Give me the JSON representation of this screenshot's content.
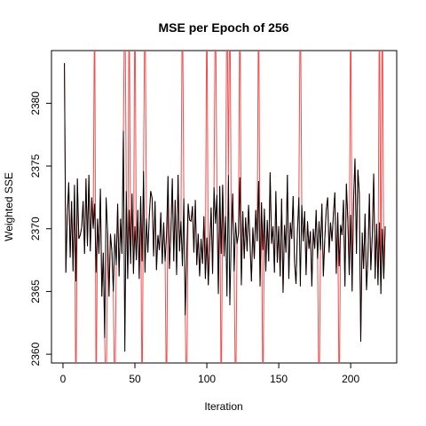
{
  "chart_data": {
    "type": "line",
    "title": "MSE per Epoch of 256",
    "xlabel": "Iteration",
    "ylabel": "Weighted SSE",
    "xlim": [
      -8,
      232
    ],
    "ylim": [
      2359.3,
      2384.2
    ],
    "xticks": [
      0,
      50,
      100,
      150,
      200
    ],
    "yticks": [
      2360,
      2365,
      2370,
      2375,
      2380
    ],
    "x": [
      1,
      2,
      3,
      4,
      5,
      6,
      7,
      8,
      9,
      10,
      11,
      12,
      13,
      14,
      15,
      16,
      17,
      18,
      19,
      20,
      21,
      22,
      23,
      24,
      25,
      26,
      27,
      28,
      29,
      30,
      31,
      32,
      33,
      34,
      35,
      36,
      37,
      38,
      39,
      40,
      41,
      42,
      43,
      44,
      45,
      46,
      47,
      48,
      49,
      50,
      51,
      52,
      53,
      54,
      55,
      56,
      57,
      58,
      59,
      60,
      61,
      62,
      63,
      64,
      65,
      66,
      67,
      68,
      69,
      70,
      71,
      72,
      73,
      74,
      75,
      76,
      77,
      78,
      79,
      80,
      81,
      82,
      83,
      84,
      85,
      86,
      87,
      88,
      89,
      90,
      91,
      92,
      93,
      94,
      95,
      96,
      97,
      98,
      99,
      100,
      101,
      102,
      103,
      104,
      105,
      106,
      107,
      108,
      109,
      110,
      111,
      112,
      113,
      114,
      115,
      116,
      117,
      118,
      119,
      120,
      121,
      122,
      123,
      124,
      125,
      126,
      127,
      128,
      129,
      130,
      131,
      132,
      133,
      134,
      135,
      136,
      137,
      138,
      139,
      140,
      141,
      142,
      143,
      144,
      145,
      146,
      147,
      148,
      149,
      150,
      151,
      152,
      153,
      154,
      155,
      156,
      157,
      158,
      159,
      160,
      161,
      162,
      163,
      164,
      165,
      166,
      167,
      168,
      169,
      170,
      171,
      172,
      173,
      174,
      175,
      176,
      177,
      178,
      179,
      180,
      181,
      182,
      183,
      184,
      185,
      186,
      187,
      188,
      189,
      190,
      191,
      192,
      193,
      194,
      195,
      196,
      197,
      198,
      199,
      200,
      201,
      202,
      203,
      204,
      205,
      206,
      207,
      208,
      209,
      210,
      211,
      212,
      213,
      214,
      215,
      216,
      217,
      218,
      219,
      220,
      221,
      222,
      223,
      224
    ],
    "series": [
      {
        "color": "#f24d4d",
        "values": [
          2383.2,
          2366.5,
          2371.0,
          2373.7,
          2367.7,
          2372.2,
          2366.6,
          2373.5,
          2355,
          2374.0,
          2369.2,
          2369.5,
          2370.1,
          2372.2,
          2368.0,
          2374.0,
          2368.6,
          2374.3,
          2368.2,
          2372.5,
          2370.0,
          2390,
          2355,
          2370.8,
          2368.0,
          2373.2,
          2364.6,
          2368.1,
          2361.3,
          2355,
          2369.8,
          2364.6,
          2369.6,
          2368.2,
          2365.0,
          2355,
          2367.1,
          2372.0,
          2366.2,
          2370.8,
          2368.0,
          2377.8,
          2390,
          2373.0,
          2366.0,
          2390,
          2367.2,
          2372.8,
          2366.4,
          2390,
          2367.5,
          2371.5,
          2366.0,
          2372.6,
          2355,
          2374.6,
          2390,
          2370.8,
          2368.1,
          2371.0,
          2373.0,
          2372.4,
          2367.8,
          2372.2,
          2366.7,
          2369.5,
          2368.3,
          2371.3,
          2367.2,
          2370.5,
          2367.4,
          2355,
          2374.2,
          2366.8,
          2369.7,
          2374.0,
          2367.4,
          2372.3,
          2366.3,
          2374.3,
          2368.2,
          2370.6,
          2390,
          2372.4,
          2363.1,
          2355,
          2372.0,
          2370.7,
          2370.6,
          2371.8,
          2368.1,
          2372.3,
          2367.1,
          2369.6,
          2366.2,
          2369.2,
          2367.2,
          2371.0,
          2366.0,
          2390,
          2365.5,
          2368.6,
          2371.7,
          2366.4,
          2373.3,
          2390,
          2372.7,
          2364.8,
          2373.4,
          2355,
          2373.5,
          2367.8,
          2371.0,
          2390,
          2374.3,
          2390,
          2369.5,
          2372.8,
          2366.6,
          2355,
          2368.8,
          2369.6,
          2390,
          2365.5,
          2371.4,
          2367.6,
          2370.9,
          2368.2,
          2371.9,
          2369.0,
          2365.8,
          2370.1,
          2367.6,
          2371.5,
          2369.0,
          2390,
          2365.4,
          2372.1,
          2355,
          2371.6,
          2366.6,
          2370.7,
          2367.4,
          2374.5,
          2368.8,
          2370.2,
          2366.5,
          2373.0,
          2367.3,
          2370.2,
          2366.2,
          2372.4,
          2364.9,
          2370.3,
          2368.1,
          2374.3,
          2366.0,
          2370.5,
          2369.2,
          2372.6,
          2367.3,
          2365.6,
          2369.8,
          2372.5,
          2390,
          2371.9,
          2369.0,
          2371.4,
          2366.3,
          2370.6,
          2368.4,
          2369.8,
          2365.4,
          2370.0,
          2368.4,
          2371.5,
          2367.6,
          2355,
          2368.3,
          2372.0,
          2366.2,
          2369.2,
          2371.5,
          2372.5,
          2368.1,
          2370.5,
          2369.0,
          2371.2,
          2372.9,
          2366.4,
          2371.3,
          2355,
          2370.3,
          2369.5,
          2372.3,
          2365.4,
          2373.6,
          2370.8,
          2366.3,
          2390,
          2365.0,
          2372.3,
          2375.6,
          2368.0,
          2374.7,
          2372.8,
          2361.0,
          2369.7,
          2366.8,
          2371.2,
          2365.1,
          2367.7,
          2372.8,
          2366.7,
          2369.4,
          2374.4,
          2366.0,
          2370.4,
          2365.5,
          2390,
          2364.8,
          2390,
          2366.0,
          2370.2
        ]
      },
      {
        "color": "#000000",
        "values": [
          2383.2,
          2366.5,
          2371.0,
          2373.7,
          2367.7,
          2372.2,
          2366.6,
          2373.5,
          2365.8,
          2374.0,
          2369.2,
          2369.5,
          2370.1,
          2372.2,
          2368.0,
          2374.0,
          2368.6,
          2374.3,
          2368.2,
          2372.5,
          2370.0,
          2372.0,
          2366.5,
          2370.8,
          2368.0,
          2373.2,
          2364.6,
          2368.1,
          2361.3,
          2372.5,
          2369.8,
          2364.6,
          2369.6,
          2368.2,
          2365.0,
          2369.6,
          2367.1,
          2372.0,
          2366.2,
          2370.8,
          2368.0,
          2377.8,
          2360.2,
          2373.0,
          2366.0,
          2371.5,
          2367.2,
          2372.8,
          2366.4,
          2370.2,
          2367.5,
          2371.5,
          2366.0,
          2372.6,
          2367.4,
          2374.6,
          2366.5,
          2370.8,
          2368.1,
          2371.0,
          2373.0,
          2372.4,
          2367.8,
          2372.2,
          2366.7,
          2369.5,
          2368.3,
          2371.3,
          2367.2,
          2370.5,
          2367.4,
          2369.6,
          2374.2,
          2366.8,
          2369.7,
          2374.0,
          2367.4,
          2372.3,
          2366.3,
          2374.3,
          2368.2,
          2370.6,
          2367.0,
          2372.4,
          2363.1,
          2367.8,
          2372.0,
          2370.7,
          2370.6,
          2371.8,
          2368.1,
          2372.3,
          2367.1,
          2369.6,
          2366.2,
          2369.2,
          2367.2,
          2371.0,
          2366.0,
          2369.3,
          2365.5,
          2368.6,
          2371.7,
          2366.4,
          2373.3,
          2370.4,
          2372.7,
          2364.8,
          2373.4,
          2368.0,
          2373.5,
          2367.8,
          2371.0,
          2364.6,
          2374.3,
          2363.9,
          2369.5,
          2372.8,
          2366.6,
          2370.5,
          2368.8,
          2369.6,
          2374.1,
          2365.5,
          2371.4,
          2367.6,
          2370.9,
          2368.2,
          2371.9,
          2369.0,
          2365.8,
          2370.1,
          2367.6,
          2371.5,
          2369.0,
          2373.8,
          2365.4,
          2372.1,
          2368.3,
          2371.6,
          2366.6,
          2370.7,
          2367.4,
          2374.5,
          2368.8,
          2370.2,
          2366.5,
          2373.0,
          2367.3,
          2370.2,
          2366.2,
          2372.4,
          2364.9,
          2370.3,
          2368.1,
          2374.3,
          2366.0,
          2370.5,
          2369.2,
          2372.6,
          2367.3,
          2365.6,
          2369.8,
          2372.5,
          2365.4,
          2371.9,
          2369.0,
          2371.4,
          2366.3,
          2370.6,
          2368.4,
          2369.8,
          2365.4,
          2370.0,
          2368.4,
          2371.5,
          2367.6,
          2370.6,
          2368.3,
          2372.0,
          2366.2,
          2369.2,
          2371.5,
          2372.5,
          2368.1,
          2370.5,
          2369.0,
          2371.2,
          2372.9,
          2366.4,
          2371.3,
          2367.0,
          2370.3,
          2369.5,
          2372.3,
          2365.4,
          2373.6,
          2370.8,
          2366.3,
          2371.1,
          2365.0,
          2372.3,
          2375.6,
          2368.0,
          2374.7,
          2372.8,
          2361.0,
          2369.7,
          2366.8,
          2371.2,
          2365.1,
          2367.7,
          2372.8,
          2366.7,
          2369.4,
          2374.4,
          2366.0,
          2370.4,
          2365.5,
          2370.5,
          2364.8,
          2370.0,
          2366.0,
          2370.2
        ]
      }
    ]
  }
}
